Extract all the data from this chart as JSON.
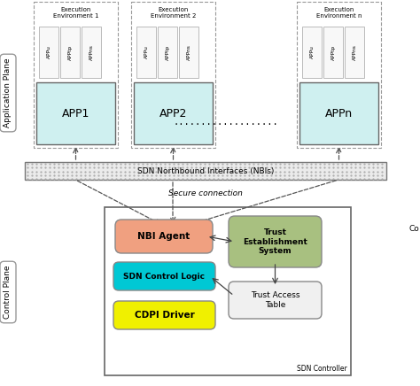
{
  "bg_color": "#ffffff",
  "app_plane_label": "Application Plane",
  "ctrl_plane_label": "Control Plane",
  "exec_env_labels": [
    "Execution\nEnvironment 1",
    "Execution\nEnvironment 2",
    "Execution\nEnvironment n"
  ],
  "app_labels": [
    "APP1",
    "APP2",
    "APPn"
  ],
  "app_sublabels": [
    "APPu",
    "APPtp",
    "APPns"
  ],
  "app_color": "#cff0f0",
  "nbi_label": "SDN Northbound Interfaces (NBIs)",
  "secure_conn_label": "Secure connection",
  "sdn_ctrl_label": "SDN Controller",
  "nbi_agent_label": "NBI Agent",
  "nbi_agent_color": "#f0a080",
  "sdn_ctrl_logic_label": "SDN Control Logic",
  "sdn_ctrl_logic_color": "#00c8d4",
  "cdpi_label": "CDPI Driver",
  "cdpi_color": "#f0f000",
  "trust_est_label": "Trust\nEstablishment\nSystem",
  "trust_est_color": "#a8c080",
  "trust_access_label": "Trust Access\nTable",
  "trust_access_color": "#f0f0f0",
  "dots_label": "...................",
  "ctrl_co_label": "Co"
}
